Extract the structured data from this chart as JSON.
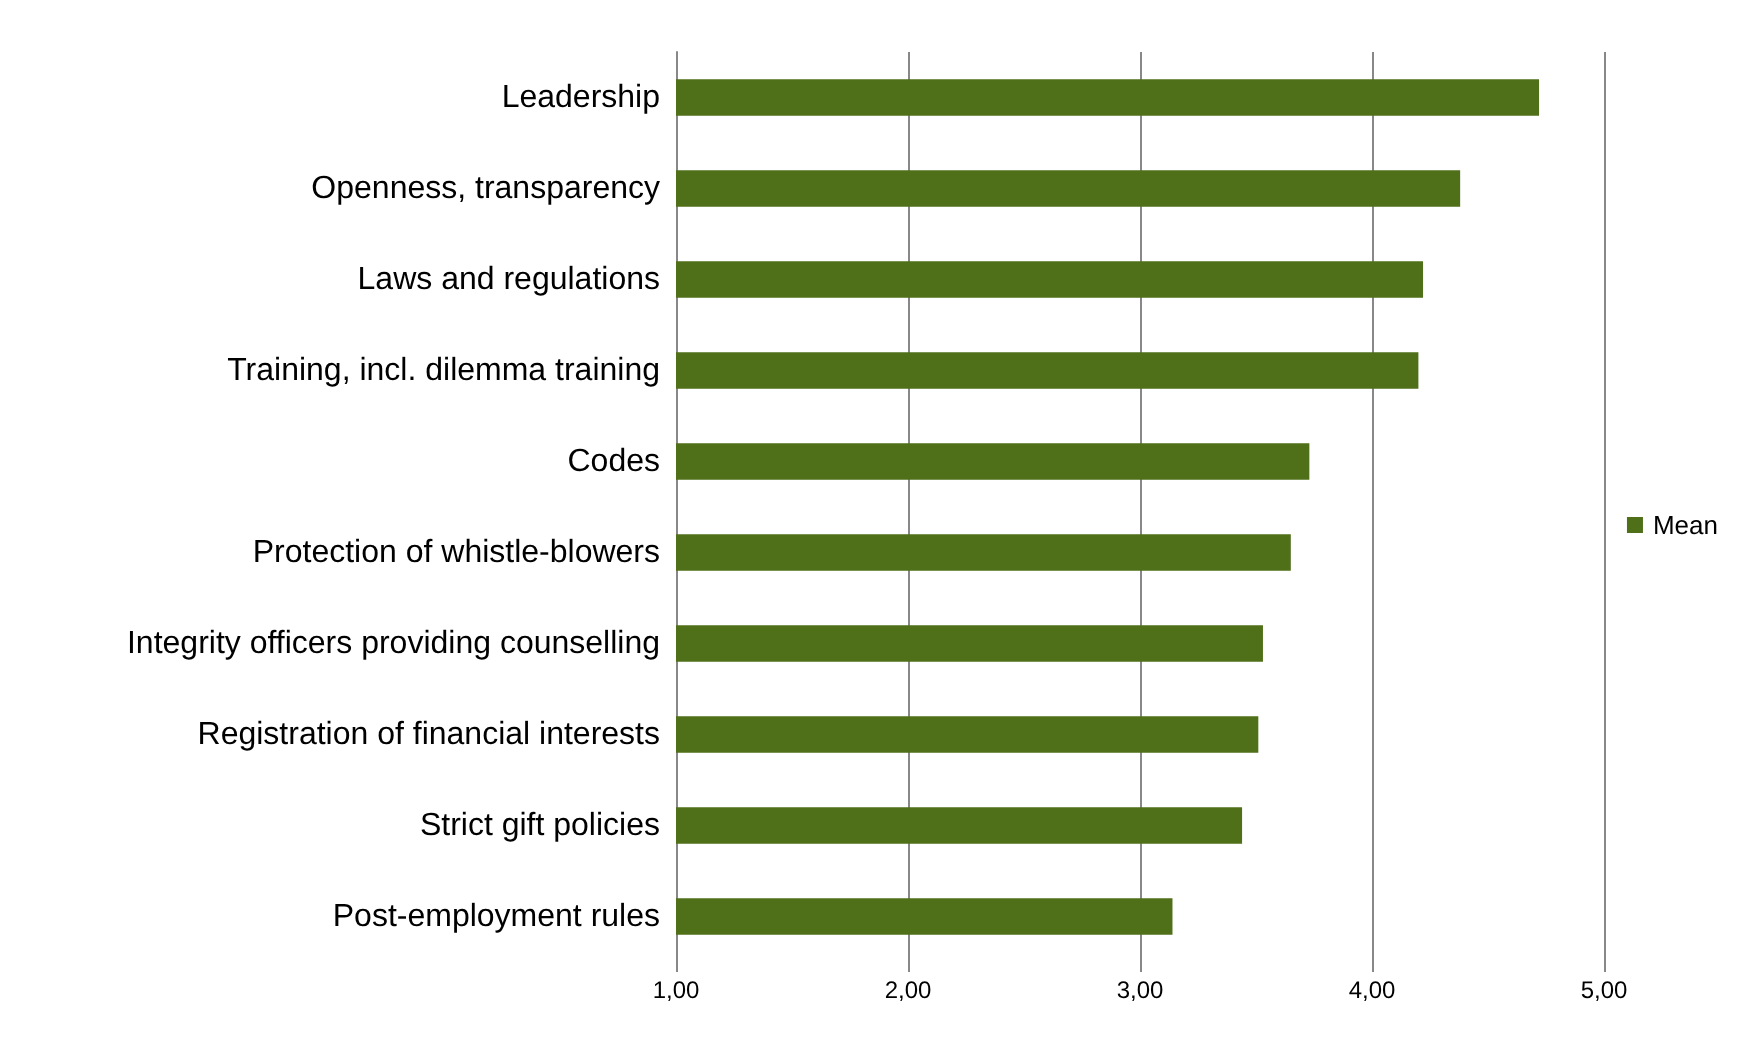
{
  "chart_data": {
    "type": "bar",
    "orientation": "horizontal",
    "categories": [
      "Leadership",
      "Openness, transparency",
      "Laws and regulations",
      "Training, incl. dilemma training",
      "Codes",
      "Protection of whistle-blowers",
      "Integrity officers providing counselling",
      "Registration of financial interests",
      "Strict gift policies",
      "Post-employment rules"
    ],
    "series": [
      {
        "name": "Mean",
        "color": "#4f6f18",
        "values": [
          4.72,
          4.38,
          4.22,
          4.2,
          3.73,
          3.65,
          3.53,
          3.51,
          3.44,
          3.14
        ]
      }
    ],
    "xlim": [
      1,
      5
    ],
    "xticks": [
      {
        "value": 1,
        "label": "1,00"
      },
      {
        "value": 2,
        "label": "2,00"
      },
      {
        "value": 3,
        "label": "3,00"
      },
      {
        "value": 4,
        "label": "4,00"
      },
      {
        "value": 5,
        "label": "5,00"
      }
    ],
    "grid": "x",
    "legend": "right"
  }
}
